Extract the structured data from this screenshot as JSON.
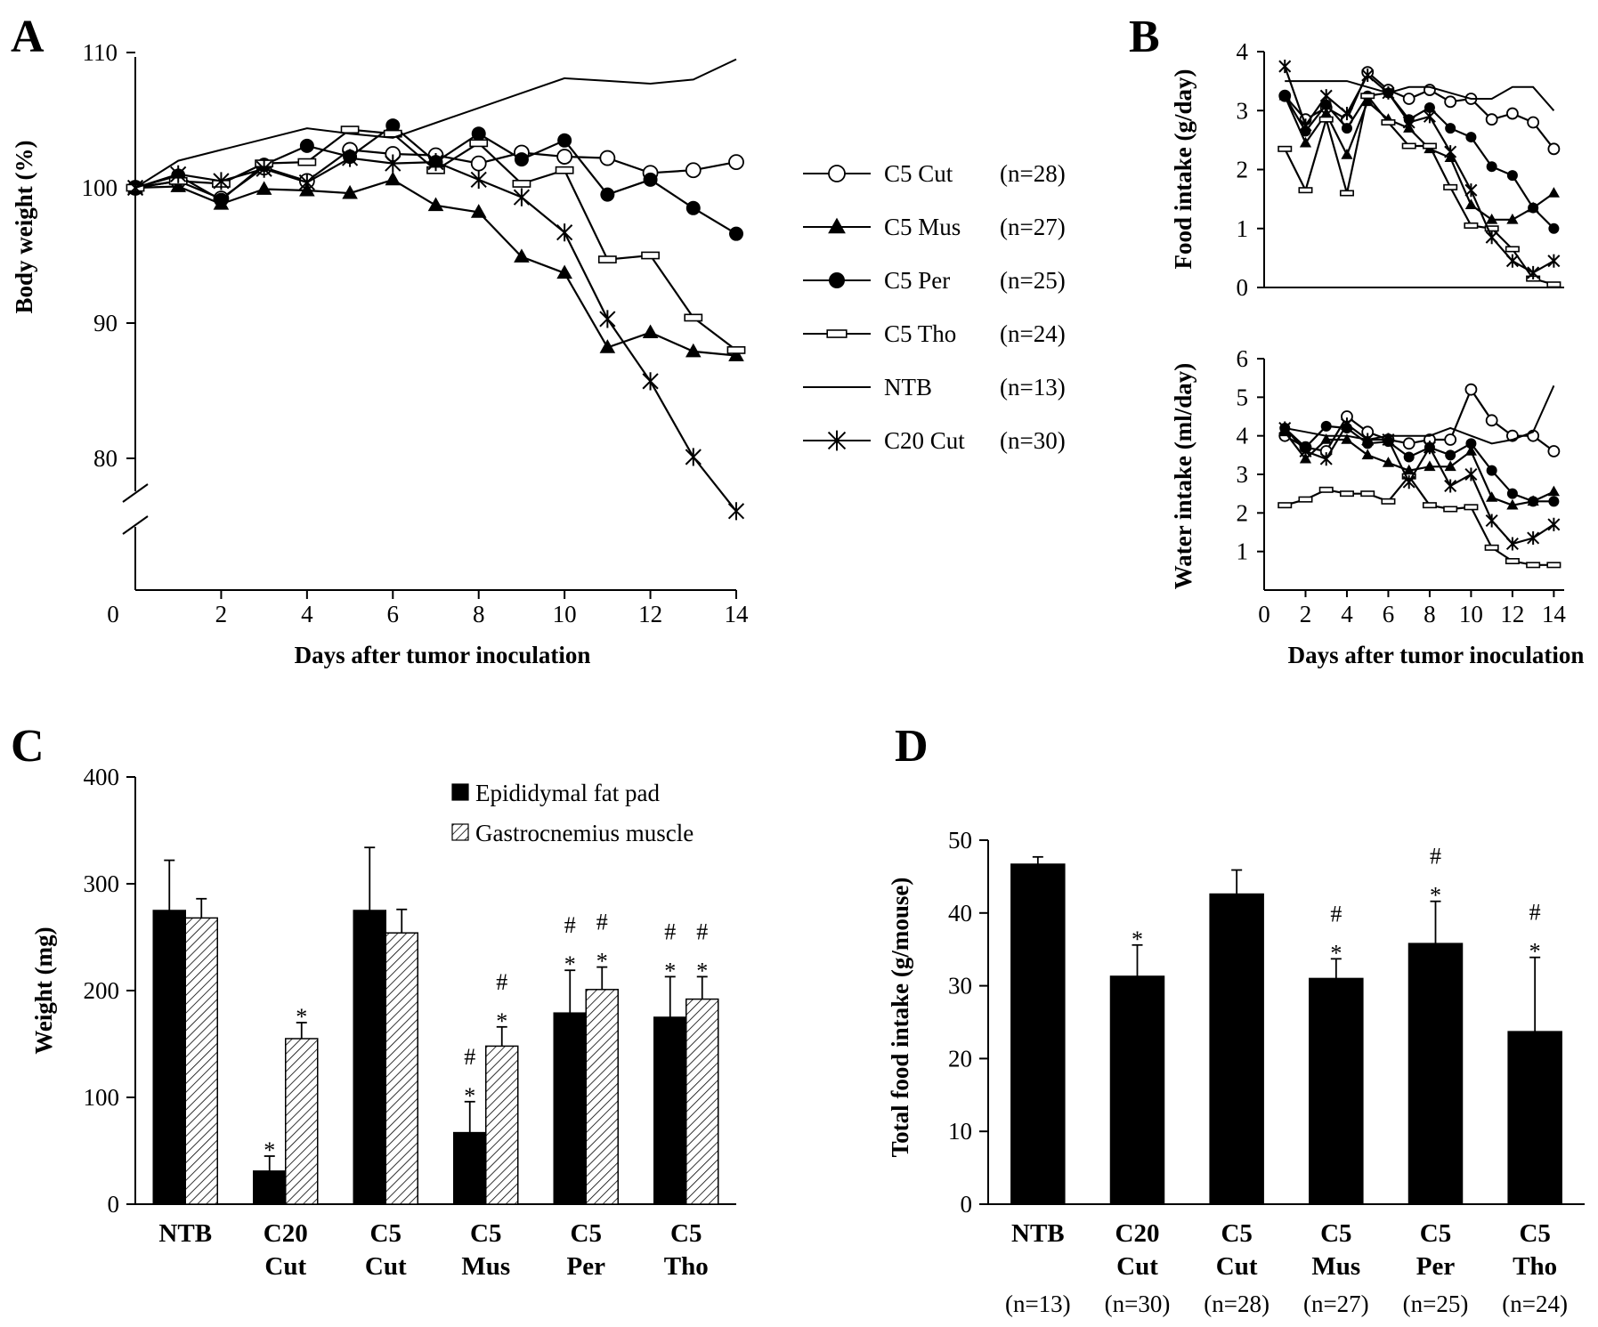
{
  "chart_data": [
    {
      "panel": "A",
      "type": "line",
      "xlabel": "Days after tumor inoculation",
      "ylabel": "Body weight (%)",
      "xlim": [
        0,
        14
      ],
      "ylim": [
        70,
        110
      ],
      "y_axis_break": [
        72,
        80
      ],
      "xticks": [
        0,
        2,
        4,
        6,
        8,
        10,
        12,
        14
      ],
      "xtick_labels": [
        "0",
        "2",
        "4",
        "6",
        "8",
        "10",
        "12",
        "14"
      ],
      "yticks": [
        80,
        90,
        100,
        110
      ],
      "ytick_labels": [
        "80",
        "90",
        "100",
        "110"
      ],
      "x": [
        0,
        1,
        2,
        3,
        4,
        5,
        6,
        7,
        8,
        9,
        10,
        11,
        12,
        13,
        14
      ],
      "series": [
        {
          "name": "C5 Cut",
          "n": "(n=28)",
          "marker": "open-circle",
          "values": [
            100,
            100.5,
            99.2,
            101.5,
            100.5,
            102.8,
            102.5,
            102.4,
            101.8,
            102.6,
            102.3,
            102.2,
            101.1,
            101.3,
            101.9
          ]
        },
        {
          "name": "C5 Mus",
          "n": "(n=27)",
          "marker": "filled-triangle",
          "values": [
            100,
            100.1,
            98.8,
            99.9,
            99.8,
            99.6,
            100.6,
            98.7,
            98.2,
            94.9,
            93.7,
            88.2,
            89.3,
            87.9,
            87.6
          ]
        },
        {
          "name": "C5 Per",
          "n": "(n=25)",
          "marker": "filled-circle",
          "values": [
            100,
            100.9,
            99.1,
            101.7,
            103.1,
            102.3,
            104.6,
            101.9,
            104.0,
            102.1,
            103.5,
            99.5,
            100.6,
            98.5,
            96.6
          ]
        },
        {
          "name": "C5 Tho",
          "n": "(n=24)",
          "marker": "open-square",
          "values": [
            100,
            100.5,
            100.3,
            101.8,
            101.9,
            104.3,
            104.0,
            101.3,
            103.3,
            100.3,
            101.3,
            94.7,
            95.0,
            90.4,
            88.0
          ]
        },
        {
          "name": "NTB",
          "n": "(n=13)",
          "marker": "none",
          "values": [
            100,
            102.0,
            102.8,
            103.6,
            104.4,
            104.0,
            103.7,
            104.8,
            105.9,
            107.0,
            108.1,
            107.9,
            107.7,
            108.0,
            109.5
          ]
        },
        {
          "name": "C20 Cut",
          "n": "(n=30)",
          "marker": "asterisk",
          "values": [
            100,
            101.0,
            100.5,
            101.4,
            100.4,
            102.2,
            101.8,
            101.9,
            100.6,
            99.3,
            96.7,
            90.3,
            85.7,
            80.1,
            76.1
          ]
        }
      ]
    },
    {
      "panel": "B",
      "type": "line",
      "subpanel": "food",
      "xlabel": "",
      "ylabel": "Food intake (g/day)",
      "xlim": [
        0,
        14.5
      ],
      "ylim": [
        0,
        4
      ],
      "yticks": [
        0,
        1,
        2,
        3,
        4
      ],
      "ytick_labels": [
        "0",
        "1",
        "2",
        "3",
        "4"
      ],
      "x": [
        1,
        2,
        3,
        4,
        5,
        6,
        7,
        8,
        9,
        10,
        11,
        12,
        13,
        14
      ],
      "series": [
        {
          "name": "C5 Cut",
          "marker": "open-circle",
          "values": [
            3.25,
            2.85,
            3.05,
            2.85,
            3.65,
            3.35,
            3.2,
            3.35,
            3.15,
            3.2,
            2.85,
            2.95,
            2.8,
            2.35
          ]
        },
        {
          "name": "C5 Mus",
          "marker": "filled-triangle",
          "values": [
            3.25,
            2.45,
            2.95,
            2.25,
            3.15,
            2.85,
            2.7,
            2.35,
            2.2,
            1.4,
            1.15,
            1.15,
            1.35,
            1.6
          ]
        },
        {
          "name": "C5 Per",
          "marker": "filled-circle",
          "values": [
            3.25,
            2.65,
            3.1,
            2.7,
            3.25,
            3.3,
            2.85,
            3.05,
            2.7,
            2.55,
            2.05,
            1.9,
            1.35,
            1.0
          ]
        },
        {
          "name": "C5 Tho",
          "marker": "open-square",
          "values": [
            2.35,
            1.65,
            2.85,
            1.6,
            3.25,
            2.8,
            2.4,
            2.4,
            1.7,
            1.05,
            1.0,
            0.65,
            0.15,
            0.05
          ]
        },
        {
          "name": "NTB",
          "marker": "none",
          "values": [
            3.5,
            3.5,
            3.5,
            3.5,
            3.4,
            3.3,
            3.4,
            3.4,
            3.3,
            3.2,
            3.2,
            3.4,
            3.4,
            3.0
          ]
        },
        {
          "name": "C20 Cut",
          "marker": "asterisk",
          "values": [
            3.75,
            2.75,
            3.25,
            2.95,
            3.6,
            3.3,
            2.8,
            2.9,
            2.3,
            1.65,
            0.85,
            0.45,
            0.25,
            0.45
          ]
        }
      ]
    },
    {
      "panel": "B",
      "type": "line",
      "subpanel": "water",
      "xlabel": "Days after tumor inoculation",
      "ylabel": "Water intake (ml/day)",
      "xlim": [
        0,
        14.5
      ],
      "ylim": [
        0,
        6
      ],
      "xticks": [
        0,
        2,
        4,
        6,
        8,
        10,
        12,
        14
      ],
      "xtick_labels": [
        "0",
        "2",
        "4",
        "6",
        "8",
        "10",
        "12",
        "14"
      ],
      "yticks": [
        1,
        2,
        3,
        4,
        5,
        6
      ],
      "ytick_labels": [
        "1",
        "2",
        "3",
        "4",
        "5",
        "6"
      ],
      "x": [
        1,
        2,
        3,
        4,
        5,
        6,
        7,
        8,
        9,
        10,
        11,
        12,
        13,
        14
      ],
      "series": [
        {
          "name": "C5 Cut",
          "marker": "open-circle",
          "values": [
            4.0,
            3.7,
            3.6,
            4.5,
            4.1,
            3.9,
            3.8,
            3.9,
            3.9,
            5.2,
            4.4,
            4.0,
            4.0,
            3.6
          ]
        },
        {
          "name": "C5 Mus",
          "marker": "filled-triangle",
          "values": [
            4.1,
            3.4,
            3.9,
            3.9,
            3.5,
            3.3,
            3.1,
            3.2,
            3.2,
            3.6,
            2.4,
            2.2,
            2.3,
            2.55
          ]
        },
        {
          "name": "C5 Per",
          "marker": "filled-circle",
          "values": [
            4.2,
            3.7,
            4.25,
            4.2,
            3.8,
            3.85,
            3.45,
            3.7,
            3.5,
            3.8,
            3.1,
            2.5,
            2.3,
            2.3
          ]
        },
        {
          "name": "C5 Tho",
          "marker": "open-square",
          "values": [
            2.2,
            2.35,
            2.6,
            2.5,
            2.5,
            2.3,
            2.95,
            2.2,
            2.1,
            2.15,
            1.1,
            0.75,
            0.65,
            0.65
          ]
        },
        {
          "name": "NTB",
          "marker": "none",
          "values": [
            4.2,
            4.1,
            4.0,
            4.0,
            3.9,
            4.0,
            4.0,
            4.0,
            4.2,
            4.0,
            3.8,
            3.9,
            4.1,
            5.3
          ]
        },
        {
          "name": "C20 Cut",
          "marker": "asterisk",
          "values": [
            4.2,
            3.6,
            3.4,
            4.3,
            3.9,
            3.9,
            2.8,
            3.7,
            2.7,
            3.0,
            1.8,
            1.2,
            1.35,
            1.7
          ]
        }
      ]
    },
    {
      "panel": "C",
      "type": "bar",
      "ylabel": "Weight (mg)",
      "ylim": [
        0,
        400
      ],
      "yticks": [
        0,
        100,
        200,
        300,
        400
      ],
      "ytick_labels": [
        "0",
        "100",
        "200",
        "300",
        "400"
      ],
      "categories": [
        [
          "NTB"
        ],
        [
          "C20",
          "Cut"
        ],
        [
          "C5",
          "Cut"
        ],
        [
          "C5",
          "Mus"
        ],
        [
          "C5",
          "Per"
        ],
        [
          "C5",
          "Tho"
        ]
      ],
      "series": [
        {
          "name": "Epididymal fat pad",
          "fill": "solid-black",
          "values": [
            275,
            31,
            275,
            67,
            179,
            175
          ],
          "errors": [
            47,
            14,
            59,
            29,
            40,
            38
          ],
          "annotations": [
            [],
            [
              "*"
            ],
            [],
            [
              "#",
              "*"
            ],
            [
              "#",
              "*"
            ],
            [
              "#",
              "*"
            ]
          ]
        },
        {
          "name": "Gastrocnemius muscle",
          "fill": "hatched",
          "values": [
            268,
            155,
            254,
            148,
            201,
            192
          ],
          "errors": [
            18,
            15,
            22,
            18,
            21,
            21
          ],
          "annotations": [
            [],
            [
              "*"
            ],
            [],
            [
              "#",
              "*"
            ],
            [
              "#",
              "*"
            ],
            [
              "#",
              "*"
            ]
          ]
        }
      ]
    },
    {
      "panel": "D",
      "type": "bar",
      "ylabel": "Total food intake (g/mouse)",
      "ylim": [
        0,
        50
      ],
      "yticks": [
        0,
        10,
        20,
        30,
        40,
        50
      ],
      "ytick_labels": [
        "0",
        "10",
        "20",
        "30",
        "40",
        "50"
      ],
      "categories": [
        [
          "NTB"
        ],
        [
          "C20",
          "Cut"
        ],
        [
          "C5",
          "Cut"
        ],
        [
          "C5",
          "Mus"
        ],
        [
          "C5",
          "Per"
        ],
        [
          "C5",
          "Tho"
        ]
      ],
      "n_labels": [
        "(n=13)",
        "(n=30)",
        "(n=28)",
        "(n=27)",
        "(n=25)",
        "(n=24)"
      ],
      "series": [
        {
          "name": "Total food intake",
          "fill": "solid-black",
          "values": [
            46.7,
            31.3,
            42.6,
            31.0,
            35.8,
            23.7
          ],
          "errors": [
            1.0,
            4.3,
            3.3,
            2.7,
            5.8,
            10.2
          ],
          "annotations": [
            [],
            [
              "*"
            ],
            [],
            [
              "#",
              "*"
            ],
            [
              "#",
              "*"
            ],
            [
              "#",
              "*"
            ]
          ]
        }
      ]
    }
  ],
  "panels": {
    "a": "A",
    "b": "B",
    "c": "C",
    "d": "D"
  }
}
